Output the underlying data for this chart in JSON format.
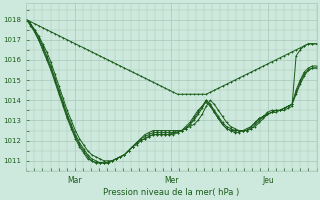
{
  "title": "Pression niveau de la mer( hPa )",
  "ylabel_values": [
    1011,
    1012,
    1013,
    1014,
    1015,
    1016,
    1017,
    1018
  ],
  "ylim": [
    1010.5,
    1018.8
  ],
  "xlim": [
    0,
    72
  ],
  "bg_color": "#cde8dc",
  "grid_color": "#a8c8b8",
  "line_color": "#1a5c1a",
  "marker": "+",
  "xlabel_ticks": [
    12,
    36,
    60
  ],
  "xlabel_labels": [
    "Mar",
    "Mer",
    "Jeu"
  ],
  "series": [
    [
      1018.0,
      1017.9,
      1017.8,
      1017.7,
      1017.6,
      1017.5,
      1017.4,
      1017.3,
      1017.2,
      1017.1,
      1017.0,
      1016.9,
      1016.8,
      1016.7,
      1016.6,
      1016.5,
      1016.4,
      1016.3,
      1016.2,
      1016.1,
      1016.0,
      1015.9,
      1015.8,
      1015.7,
      1015.6,
      1015.5,
      1015.4,
      1015.3,
      1015.2,
      1015.1,
      1015.0,
      1014.9,
      1014.8,
      1014.7,
      1014.6,
      1014.5,
      1014.4,
      1014.3,
      1014.3,
      1014.3,
      1014.3,
      1014.3,
      1014.3,
      1014.3,
      1014.3,
      1014.4,
      1014.5,
      1014.6,
      1014.7,
      1014.8,
      1014.9,
      1015.0,
      1015.1,
      1015.2,
      1015.3,
      1015.4,
      1015.5,
      1015.6,
      1015.7,
      1015.8,
      1015.9,
      1016.0,
      1016.1,
      1016.2,
      1016.3,
      1016.4,
      1016.5,
      1016.6,
      1016.7,
      1016.8,
      1016.8,
      1016.8
    ],
    [
      1018.0,
      1017.8,
      1017.5,
      1017.2,
      1016.8,
      1016.4,
      1015.9,
      1015.3,
      1014.7,
      1014.1,
      1013.5,
      1013.0,
      1012.5,
      1012.1,
      1011.8,
      1011.5,
      1011.3,
      1011.2,
      1011.1,
      1011.0,
      1011.0,
      1011.0,
      1011.1,
      1011.2,
      1011.3,
      1011.5,
      1011.7,
      1011.9,
      1012.1,
      1012.3,
      1012.4,
      1012.5,
      1012.5,
      1012.5,
      1012.5,
      1012.5,
      1012.5,
      1012.5,
      1012.5,
      1012.6,
      1012.7,
      1012.8,
      1013.0,
      1013.3,
      1013.7,
      1014.0,
      1013.8,
      1013.5,
      1013.2,
      1012.9,
      1012.7,
      1012.6,
      1012.5,
      1012.5,
      1012.5,
      1012.6,
      1012.7,
      1012.9,
      1013.1,
      1013.3,
      1013.4,
      1013.5,
      1013.5,
      1013.5,
      1013.6,
      1013.7,
      1016.2,
      1016.5,
      1016.7,
      1016.8,
      1016.8,
      1016.8
    ],
    [
      1018.0,
      1017.8,
      1017.5,
      1017.1,
      1016.7,
      1016.2,
      1015.7,
      1015.1,
      1014.5,
      1013.9,
      1013.3,
      1012.8,
      1012.3,
      1011.9,
      1011.6,
      1011.3,
      1011.1,
      1011.0,
      1010.9,
      1010.9,
      1010.9,
      1011.0,
      1011.1,
      1011.2,
      1011.3,
      1011.5,
      1011.7,
      1011.9,
      1012.1,
      1012.2,
      1012.3,
      1012.4,
      1012.4,
      1012.4,
      1012.4,
      1012.4,
      1012.4,
      1012.5,
      1012.5,
      1012.6,
      1012.8,
      1013.0,
      1013.3,
      1013.6,
      1014.0,
      1013.8,
      1013.5,
      1013.2,
      1012.9,
      1012.7,
      1012.6,
      1012.5,
      1012.5,
      1012.5,
      1012.5,
      1012.6,
      1012.8,
      1013.0,
      1013.2,
      1013.4,
      1013.5,
      1013.5,
      1013.5,
      1013.6,
      1013.7,
      1013.8,
      1014.5,
      1015.0,
      1015.4,
      1015.6,
      1015.7,
      1015.7
    ],
    [
      1018.0,
      1017.8,
      1017.4,
      1017.0,
      1016.6,
      1016.1,
      1015.6,
      1015.0,
      1014.4,
      1013.8,
      1013.2,
      1012.7,
      1012.2,
      1011.8,
      1011.5,
      1011.2,
      1011.0,
      1010.9,
      1010.9,
      1010.9,
      1010.9,
      1011.0,
      1011.1,
      1011.2,
      1011.3,
      1011.5,
      1011.7,
      1011.9,
      1012.0,
      1012.1,
      1012.2,
      1012.3,
      1012.3,
      1012.3,
      1012.3,
      1012.3,
      1012.4,
      1012.4,
      1012.5,
      1012.6,
      1012.8,
      1013.1,
      1013.4,
      1013.7,
      1014.0,
      1013.8,
      1013.4,
      1013.1,
      1012.8,
      1012.6,
      1012.5,
      1012.5,
      1012.5,
      1012.5,
      1012.6,
      1012.7,
      1012.9,
      1013.1,
      1013.2,
      1013.3,
      1013.4,
      1013.5,
      1013.5,
      1013.6,
      1013.7,
      1013.8,
      1014.4,
      1014.9,
      1015.3,
      1015.5,
      1015.6,
      1015.6
    ],
    [
      1018.0,
      1017.7,
      1017.4,
      1017.0,
      1016.5,
      1016.0,
      1015.5,
      1014.9,
      1014.3,
      1013.7,
      1013.1,
      1012.6,
      1012.1,
      1011.7,
      1011.4,
      1011.1,
      1011.0,
      1010.9,
      1010.9,
      1010.9,
      1010.9,
      1011.0,
      1011.1,
      1011.2,
      1011.3,
      1011.5,
      1011.7,
      1011.8,
      1012.0,
      1012.1,
      1012.2,
      1012.3,
      1012.3,
      1012.3,
      1012.3,
      1012.3,
      1012.3,
      1012.4,
      1012.5,
      1012.7,
      1012.9,
      1013.2,
      1013.5,
      1013.7,
      1013.9,
      1013.7,
      1013.4,
      1013.1,
      1012.8,
      1012.6,
      1012.5,
      1012.4,
      1012.4,
      1012.5,
      1012.5,
      1012.7,
      1012.9,
      1013.1,
      1013.2,
      1013.3,
      1013.4,
      1013.4,
      1013.5,
      1013.6,
      1013.7,
      1013.8,
      1014.3,
      1014.8,
      1015.2,
      1015.5,
      1015.6,
      1015.6
    ]
  ]
}
